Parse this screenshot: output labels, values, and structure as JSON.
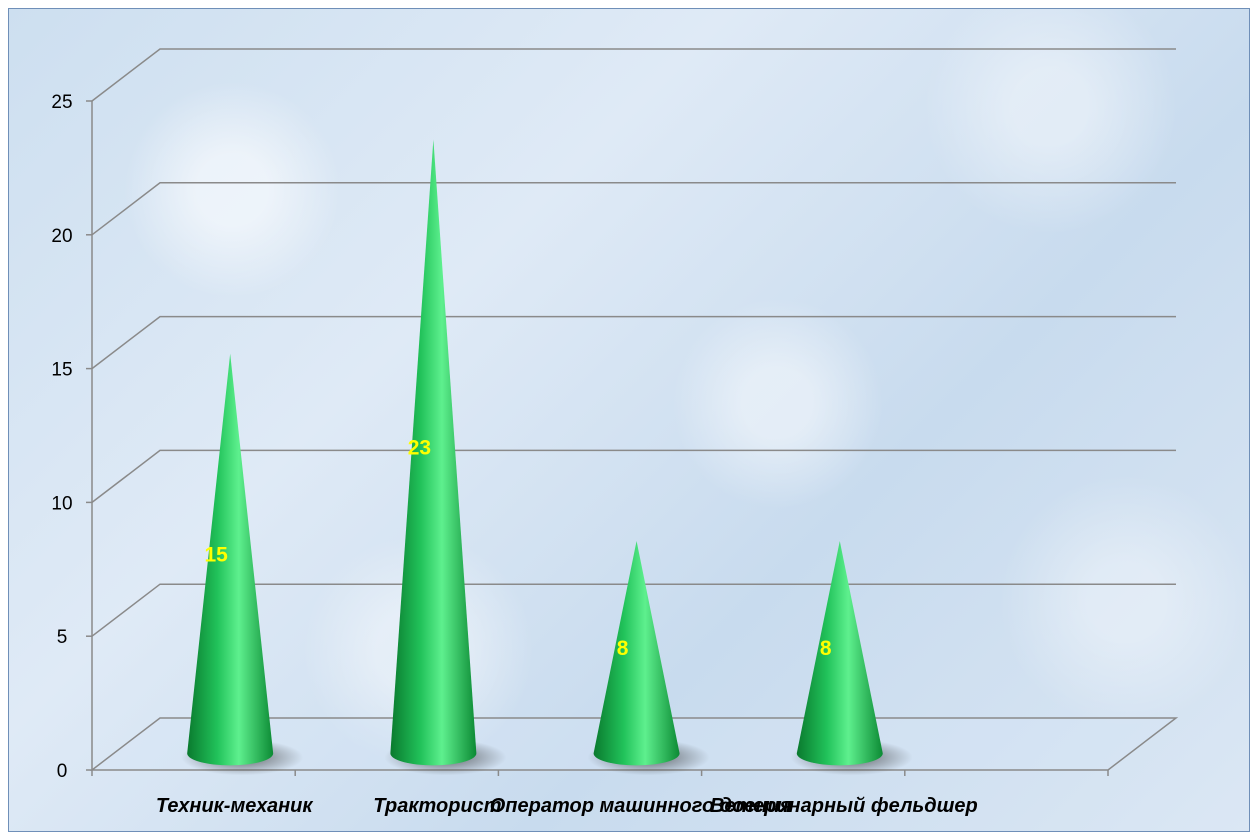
{
  "chart_data": {
    "type": "bar",
    "style": "3d-cone",
    "categories": [
      "Техник-механик",
      "Тракторист",
      "Оператор машинного доения",
      "Ветеринарный фельдшер"
    ],
    "values": [
      15,
      23,
      8,
      8
    ],
    "data_labels": [
      "15",
      "23",
      "8",
      "8"
    ],
    "y_ticks": [
      "0",
      "5",
      "10",
      "15",
      "20",
      "25"
    ],
    "ylim": [
      0,
      25
    ],
    "grid": true,
    "legend": "none",
    "colors": {
      "cone_dark": "#0a7a2e",
      "cone_mid": "#21c25a",
      "cone_light": "#5ef08e",
      "data_label": "#ffff00",
      "gridline": "#8a8a8a",
      "background": "#d4e3f2"
    }
  }
}
